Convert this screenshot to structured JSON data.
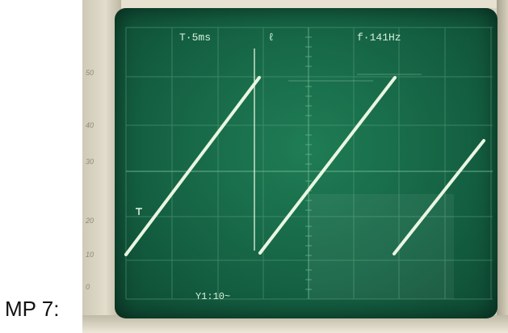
{
  "caption": "MP 7:",
  "oscilloscope": {
    "time_readout": "T·5ms",
    "marker_readout": "ℓ",
    "frequency_readout": "f·141Hz",
    "voltage_readout": "Y1:10~",
    "side_scale": [
      "50",
      "40",
      "30",
      "20",
      "10",
      "0"
    ],
    "colors": {
      "screen": "#156344",
      "grid": "#5aa07e",
      "trace": "#e9f6e2",
      "bezel": "#d9d4c4"
    }
  }
}
